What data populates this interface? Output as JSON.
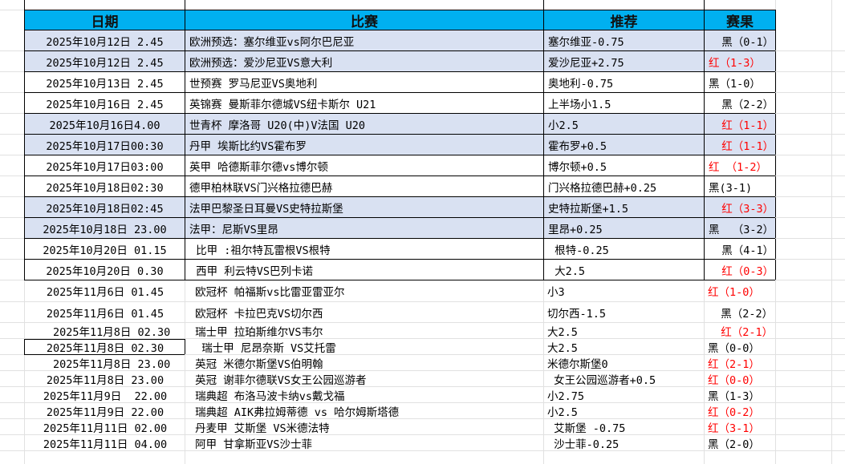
{
  "header": {
    "date": "日期",
    "match": "比赛",
    "pick": "推荐",
    "result": "赛果"
  },
  "colors": {
    "header_bg": "#00b0f0",
    "row_shade": "#d9e1f2",
    "win_red": "#ff0000",
    "loss_black": "#000000"
  },
  "rows": [
    {
      "date": "2025年10月12日 2.45",
      "match": "欧洲预选：塞尔维亚vs阿尔巴尼亚",
      "pick": "塞尔维亚-0.75",
      "result": "  黑（0-1）",
      "red": false,
      "shade": true,
      "bordered": true
    },
    {
      "date": "2025年10月12日 2.45",
      "match": "欧洲预选：爱沙尼亚VS意大利",
      "pick": "爱沙尼亚+2.75",
      "result": "红（1-3）",
      "red": true,
      "shade": true,
      "bordered": true
    },
    {
      "date": "2025年10月13日 2.45",
      "match": "世预赛 罗马尼亚VS奥地利",
      "pick": "奥地利-0.75",
      "result": "黑（1-0）",
      "red": false,
      "shade": false,
      "bordered": true
    },
    {
      "date": "2025年10月16日 2.45",
      "match": "英锦赛 曼斯菲尔德城VS纽卡斯尔 U21",
      "pick": "上半场小1.5",
      "result": "  黑（2-2）",
      "red": false,
      "shade": false,
      "bordered": true
    },
    {
      "date": "2025年10月16日4.00",
      "match": "世青杯 摩洛哥 U20(中)V法国 U20",
      "pick": "小2.5",
      "result": "  红（1-1）",
      "red": true,
      "shade": true,
      "bordered": true
    },
    {
      "date": "2025年10月17日00:30",
      "match": "丹甲 埃斯比约VS霍布罗",
      "pick": "霍布罗+0.5",
      "result": "  红（1-1）",
      "red": true,
      "shade": true,
      "bordered": true
    },
    {
      "date": "2025年10月17日03:00",
      "match": "英甲 哈德斯菲尔德vs博尔顿",
      "pick": "博尔顿+0.5",
      "result": "红 （1-2）",
      "red": true,
      "shade": false,
      "bordered": true
    },
    {
      "date": "2025年10月18日02:30",
      "match": "德甲柏林联VS门兴格拉德巴赫",
      "pick": "门兴格拉德巴赫+0.25",
      "result": "黑(3-1)",
      "red": false,
      "shade": false,
      "bordered": true
    },
    {
      "date": "2025年10月18日02:45",
      "match": "法甲巴黎圣日耳曼VS史特拉斯堡",
      "pick": "史特拉斯堡+1.5",
      "result": "  红（3-3）",
      "red": true,
      "shade": true,
      "bordered": true
    },
    {
      "date": "2025年10月18日 23.00",
      "match": "法甲：尼斯VS里昂",
      "pick": "里昂+0.25",
      "result": "黑  （3-2）",
      "red": false,
      "shade": true,
      "bordered": true
    },
    {
      "date": "2025年10月20日 01.15",
      "match": " 比甲 :祖尔特瓦雷根VS根特",
      "pick": " 根特-0.25",
      "result": "  黑（4-1）",
      "red": false,
      "shade": false,
      "bordered": true
    },
    {
      "date": "2025年10月20日 0.30",
      "match": " 西甲 利云特VS巴列卡诺",
      "pick": " 大2.5",
      "result": "  红（0-3）",
      "red": true,
      "shade": false,
      "bordered": true
    },
    {
      "date": "2025年11月6日 01.45",
      "match": " 欧冠杯 帕福斯vs比雷亚雷亚尔",
      "pick": "小3",
      "result": "红（1-0）",
      "red": true,
      "shade": false,
      "bordered": false
    },
    {
      "date": "2025年11月6日 01.45",
      "match": " 欧冠杯 卡拉巴克VS切尔西",
      "pick": "切尔西-1.5",
      "result": "  黑（2-2）",
      "red": false,
      "shade": false,
      "bordered": false
    },
    {
      "date": "  2025年11月8日 02.30",
      "match": " 瑞士甲 拉珀斯维尔VS韦尔",
      "pick": "大2.5",
      "result": "  红（2-1）",
      "red": true,
      "shade": false,
      "bordered": false
    },
    {
      "date": "2025年11月8日 02.30",
      "match": "  瑞士甲 尼昂奈斯 VS艾托雷",
      "pick": "大2.5",
      "result": "黑（0-0）",
      "red": false,
      "shade": false,
      "bordered": false,
      "selected": true
    },
    {
      "date": "  2025年11月8日 23.00",
      "match": " 英冠 米德尔斯堡VS伯明翰",
      "pick": "米德尔斯堡0",
      "result": "红（2-1）",
      "red": true,
      "shade": false,
      "bordered": false
    },
    {
      "date": "2025年11月8日 23.00",
      "match": " 英冠 谢菲尔德联VS女王公园巡游者",
      "pick": " 女王公园巡游者+0.5",
      "result": "红（0-0）",
      "red": true,
      "shade": false,
      "bordered": false
    },
    {
      "date": "2025年11月9日  22.00",
      "match": " 瑞典超 布洛马波卡纳vs戴戈福",
      "pick": "小2.75",
      "result": "黑（1-3）",
      "red": false,
      "shade": false,
      "bordered": false
    },
    {
      "date": "2025年11月9日 22.00",
      "match": " 瑞典超 AIK弗拉姆蒂德 vs 哈尔姆斯塔德",
      "pick": "小2.5",
      "result": "红（0-2）",
      "red": true,
      "shade": false,
      "bordered": false
    },
    {
      "date": "2025年11月11日 02.00",
      "match": " 丹麦甲 艾斯堡 VS米德法特",
      "pick": " 艾斯堡 -0.75",
      "result": "红（3-1）",
      "red": true,
      "shade": false,
      "bordered": false
    },
    {
      "date": "2025年11月11日 04.00",
      "match": " 阿甲 甘拿斯亚VS沙士菲",
      "pick": " 沙士菲-0.25",
      "result": "黑（2-0）",
      "red": false,
      "shade": false,
      "bordered": false
    }
  ]
}
